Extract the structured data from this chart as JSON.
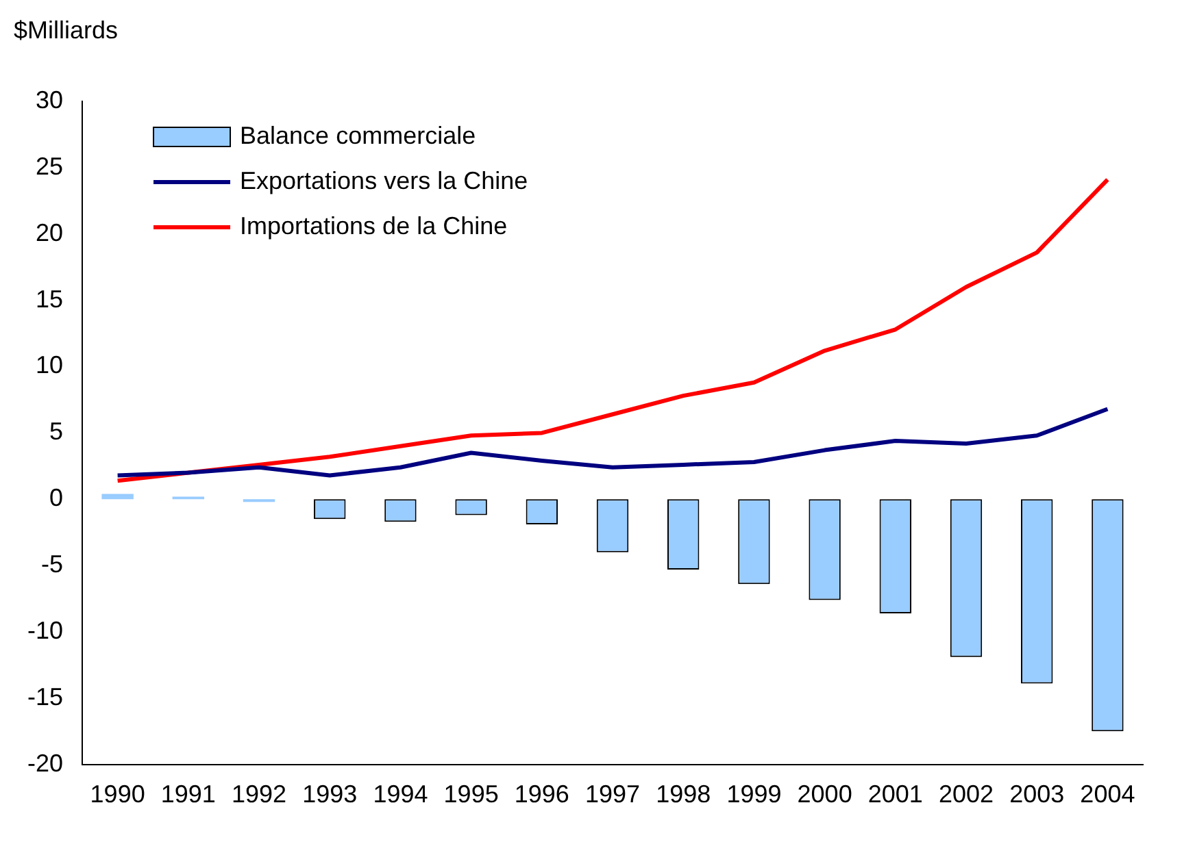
{
  "chart_data": {
    "type": "bar",
    "ylabel": "$Milliards",
    "categories": [
      "1990",
      "1991",
      "1992",
      "1993",
      "1994",
      "1995",
      "1996",
      "1997",
      "1998",
      "1999",
      "2000",
      "2001",
      "2002",
      "2003",
      "2004"
    ],
    "series": [
      {
        "name": "Balance commerciale",
        "color": "#99ccff",
        "values": [
          0.4,
          0.2,
          -0.2,
          -1.5,
          -1.7,
          -1.2,
          -1.9,
          -4.0,
          -5.3,
          -6.4,
          -7.6,
          -8.6,
          -11.9,
          -13.9,
          -17.5
        ]
      },
      {
        "name": "Exportations vers la Chine",
        "type": "line",
        "color": "#000080",
        "values": [
          1.8,
          2.0,
          2.4,
          1.8,
          2.4,
          3.5,
          2.9,
          2.4,
          2.6,
          2.8,
          3.7,
          4.4,
          4.2,
          4.8,
          6.8
        ]
      },
      {
        "name": "Importations de la Chine",
        "type": "line",
        "color": "#ff0000",
        "values": [
          1.4,
          2.0,
          2.6,
          3.2,
          4.0,
          4.8,
          5.0,
          6.4,
          7.8,
          8.8,
          11.2,
          12.8,
          16.0,
          18.6,
          24.1
        ]
      }
    ],
    "ylim": [
      -20,
      30
    ],
    "yticks": [
      -20,
      -15,
      -10,
      -5,
      0,
      5,
      10,
      15,
      20,
      25,
      30
    ],
    "grid": false,
    "legend": "top left",
    "marker": "none",
    "line_style": "solid"
  }
}
